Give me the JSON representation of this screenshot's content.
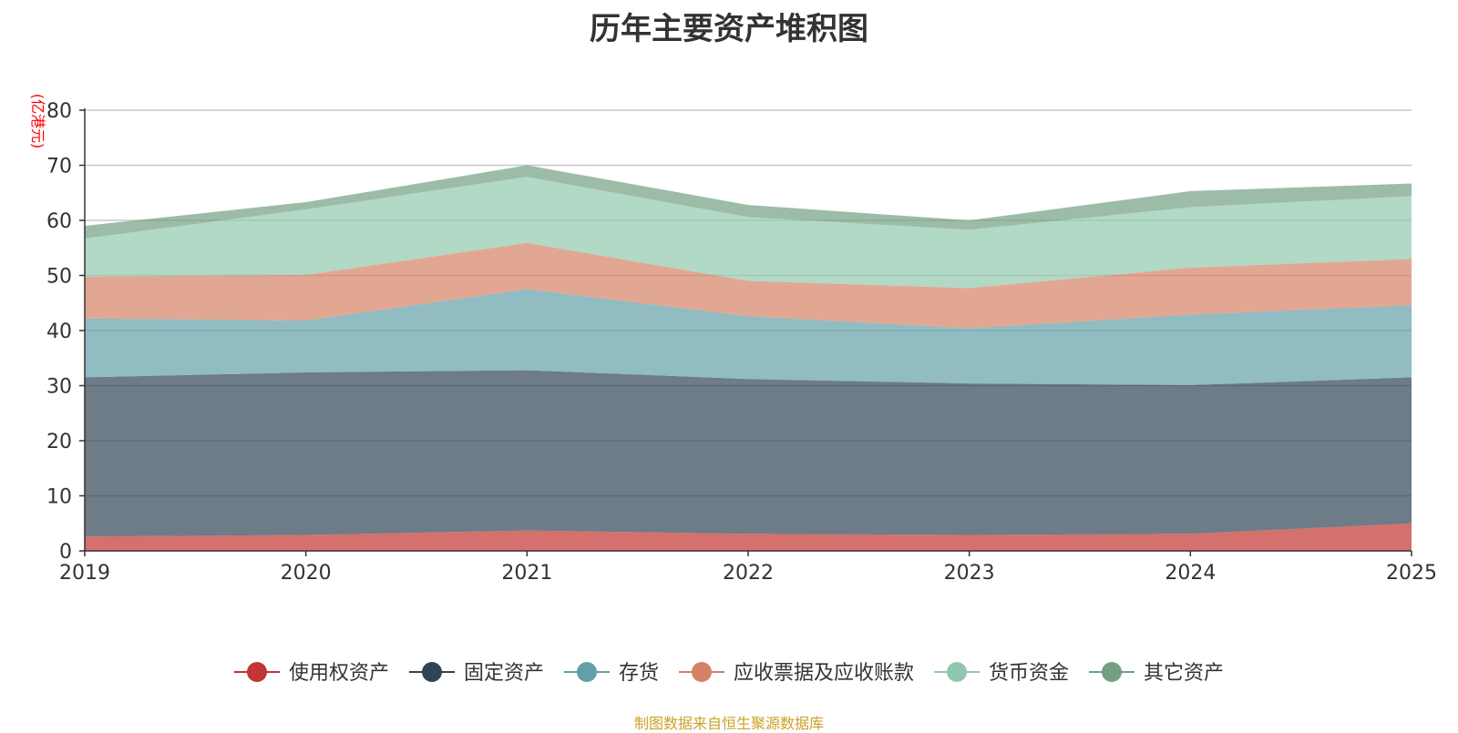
{
  "chart_data": {
    "type": "area",
    "stacked": true,
    "title": "历年主要资产堆积图",
    "ylabel": "(亿港元)",
    "xlabel": "",
    "x": [
      "2019",
      "2020",
      "2021",
      "2022",
      "2023",
      "2024",
      "2025"
    ],
    "ylim": [
      0,
      80
    ],
    "yticks": [
      0,
      10,
      20,
      30,
      40,
      50,
      60,
      70,
      80
    ],
    "grid": true,
    "legend_position": "bottom",
    "series": [
      {
        "name": "使用权资产",
        "color": "#c23531",
        "values": [
          2.6,
          2.9,
          3.7,
          3.1,
          2.9,
          3.1,
          5.0
        ]
      },
      {
        "name": "固定资产",
        "color": "#2f4554",
        "values": [
          28.9,
          29.5,
          29.1,
          28.1,
          27.5,
          27.0,
          26.5
        ]
      },
      {
        "name": "存货",
        "color": "#61a0a8",
        "values": [
          10.7,
          9.4,
          14.7,
          11.4,
          10.0,
          12.8,
          13.1
        ]
      },
      {
        "name": "应收票据及应收账款",
        "color": "#d48265",
        "values": [
          7.6,
          8.3,
          8.4,
          6.4,
          7.3,
          8.5,
          8.4
        ]
      },
      {
        "name": "货币资金",
        "color": "#91c7ae",
        "values": [
          6.9,
          11.9,
          12.0,
          11.6,
          10.6,
          11.0,
          11.4
        ]
      },
      {
        "name": "其它资产",
        "color": "#749f83",
        "values": [
          2.3,
          1.3,
          2.1,
          2.2,
          1.7,
          2.9,
          2.3
        ]
      }
    ]
  },
  "source_note": "制图数据来自恒生聚源数据库"
}
